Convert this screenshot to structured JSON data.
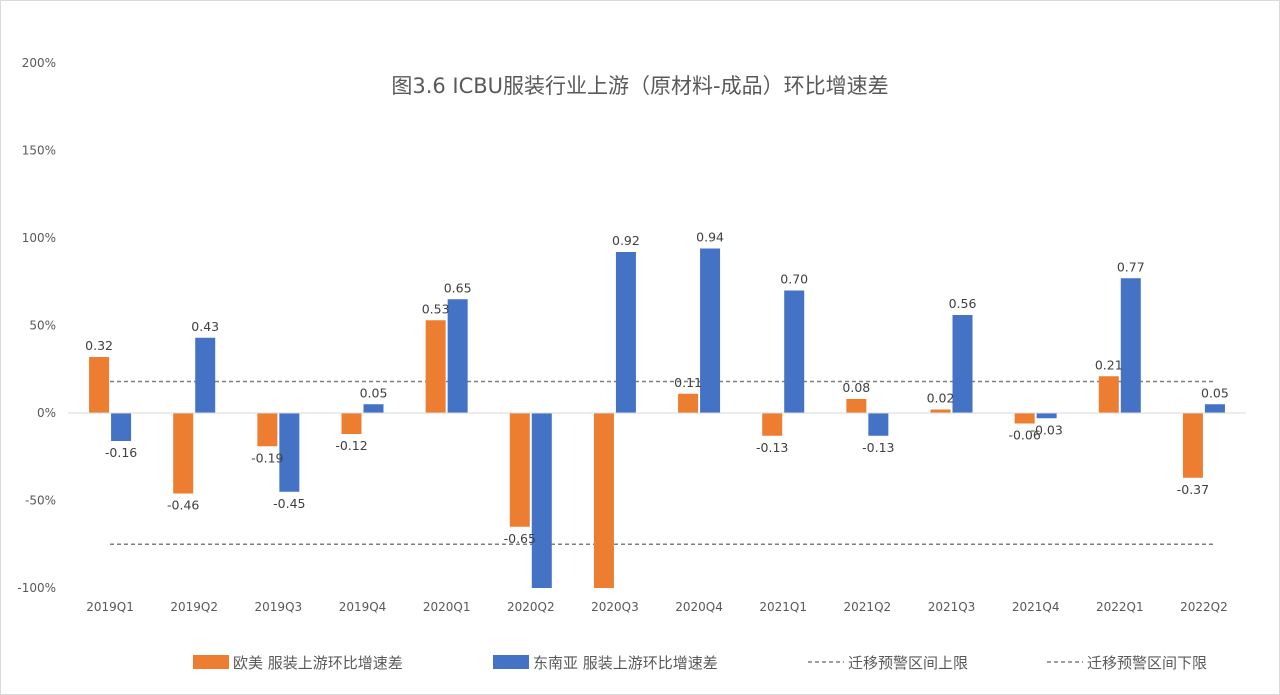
{
  "chart_data": {
    "type": "bar",
    "title": "图3.6 ICBU服装行业上游（原材料-成品）环比增速差",
    "categories": [
      "2019Q1",
      "2019Q2",
      "2019Q3",
      "2019Q4",
      "2020Q1",
      "2020Q2",
      "2020Q3",
      "2020Q4",
      "2021Q1",
      "2021Q2",
      "2021Q3",
      "2021Q4",
      "2022Q1",
      "2022Q2"
    ],
    "series": [
      {
        "name": "欧美 服装上游环比增速差",
        "color": "#ED7D31",
        "values": [
          0.32,
          -0.46,
          -0.19,
          -0.12,
          0.53,
          -0.65,
          -1.0,
          0.11,
          -0.13,
          0.08,
          0.02,
          -0.06,
          0.21,
          -0.37
        ],
        "labels": [
          "0.32",
          "-0.46",
          "-0.19",
          "-0.12",
          "0.53",
          "-0.65",
          "",
          "0.11",
          "-0.13",
          "0.08",
          "0.02",
          "-0.06",
          "0.21",
          "-0.37"
        ]
      },
      {
        "name": "东南亚 服装上游环比增速差",
        "color": "#4472C4",
        "values": [
          -0.16,
          0.43,
          -0.45,
          0.05,
          0.65,
          -1.0,
          0.92,
          0.94,
          0.7,
          -0.13,
          0.56,
          -0.03,
          0.77,
          0.05
        ],
        "labels": [
          "-0.16",
          "0.43",
          "-0.45",
          "0.05",
          "0.65",
          "",
          "0.92",
          "0.94",
          "0.70",
          "-0.13",
          "0.56",
          "-0.03",
          "0.77",
          "0.05"
        ]
      }
    ],
    "reference_lines": [
      {
        "name": "迁移预警区间上限",
        "value": 0.18,
        "color": "#7f7f7f"
      },
      {
        "name": "迁移预警区间下限",
        "value": -0.75,
        "color": "#7f7f7f"
      }
    ],
    "ylim": [
      -1.0,
      2.0
    ],
    "yticks": [
      2.0,
      1.5,
      1.0,
      0.5,
      0.0,
      -0.5,
      -1.0
    ],
    "ytick_labels": [
      "200%",
      "150%",
      "100%",
      "50%",
      "0%",
      "-50%",
      "-100%"
    ],
    "xlabel": "",
    "ylabel": "",
    "grid": false,
    "legend_position": "bottom"
  }
}
